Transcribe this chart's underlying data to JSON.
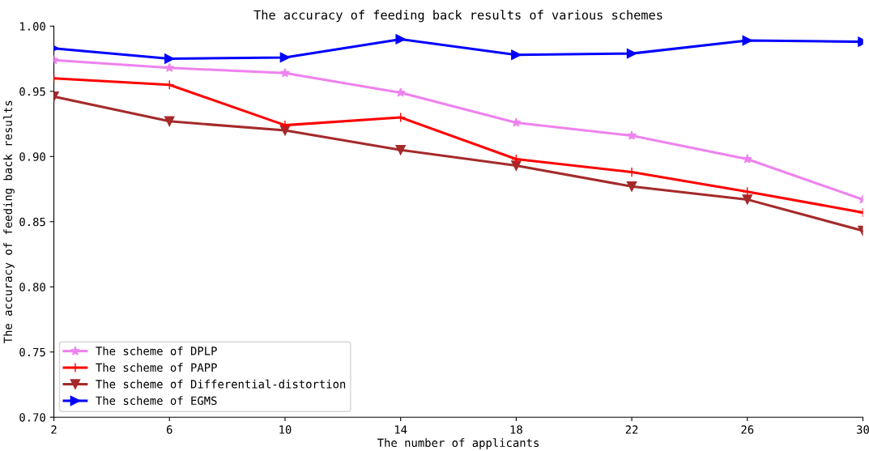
{
  "chart_data": {
    "type": "line",
    "title": "The accuracy of feeding back results of various schemes",
    "xlabel": "The number of applicants",
    "ylabel": "The accuracy of feeding back results",
    "x": [
      2,
      6,
      10,
      14,
      18,
      22,
      26,
      30
    ],
    "series": [
      {
        "name": "The scheme of DPLP",
        "color": "#ee82ee",
        "marker": "star",
        "values": [
          0.974,
          0.968,
          0.964,
          0.949,
          0.926,
          0.916,
          0.898,
          0.867
        ]
      },
      {
        "name": "The scheme of PAPP",
        "color": "#ff0000",
        "marker": "cross",
        "values": [
          0.96,
          0.955,
          0.924,
          0.93,
          0.898,
          0.888,
          0.873,
          0.857
        ]
      },
      {
        "name": "The scheme of Differential-distortion",
        "color": "#a52a2a",
        "marker": "triangle-down",
        "values": [
          0.946,
          0.927,
          0.92,
          0.905,
          0.893,
          0.877,
          0.867,
          0.843
        ]
      },
      {
        "name": "The scheme of EGMS",
        "color": "#0000ff",
        "marker": "triangle-right",
        "values": [
          0.983,
          0.975,
          0.976,
          0.99,
          0.978,
          0.979,
          0.989,
          0.988
        ]
      }
    ],
    "xlim": [
      2,
      30
    ],
    "xticks": [
      2,
      6,
      10,
      14,
      18,
      22,
      26,
      30
    ],
    "ylim": [
      0.7,
      1.0
    ],
    "yticks": [
      {
        "value": 0.7,
        "label": "0.70"
      },
      {
        "value": 0.75,
        "label": "0.75"
      },
      {
        "value": 0.8,
        "label": "0.80"
      },
      {
        "value": 0.85,
        "label": "0.85"
      },
      {
        "value": 0.9,
        "label": "0.90"
      },
      {
        "value": 0.95,
        "label": "0.95"
      },
      {
        "value": 1.0,
        "label": "1.00"
      }
    ],
    "legend": "bottom left",
    "grid": false,
    "line_style": "solid"
  }
}
